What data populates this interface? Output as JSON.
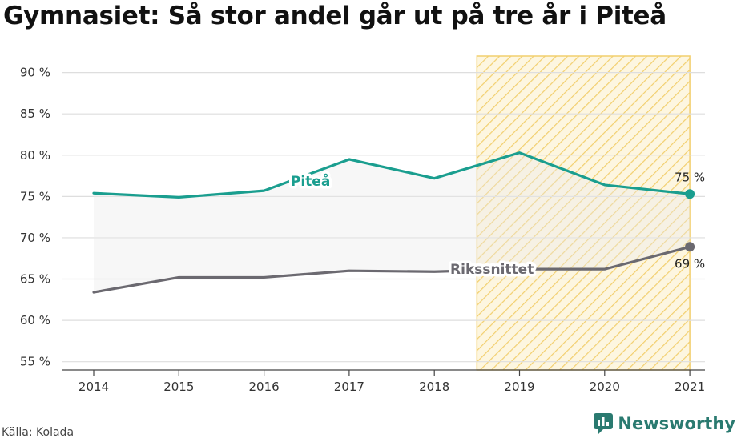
{
  "title": "Gymnasiet: Så stor andel går ut på tre år i Piteå",
  "source": "Källa: Kolada",
  "brand": "Newsworthy",
  "chart_data": {
    "type": "line",
    "title": "Gymnasiet: Så stor andel går ut på tre år i Piteå",
    "x": [
      "2014",
      "2015",
      "2016",
      "2017",
      "2018",
      "2019",
      "2020",
      "2021"
    ],
    "yticks": [
      "55 %",
      "60 %",
      "65 %",
      "70 %",
      "75 %",
      "80 %",
      "85 %",
      "90 %"
    ],
    "ylim": [
      54,
      92
    ],
    "highlight_range": [
      "2018.5",
      "2021"
    ],
    "series": [
      {
        "name": "Piteå",
        "color": "#1a9e8f",
        "values": [
          75.4,
          74.9,
          75.7,
          79.5,
          77.2,
          80.3,
          76.4,
          75.3
        ],
        "end_label": "75 %"
      },
      {
        "name": "Rikssnittet",
        "color": "#6b6970",
        "values": [
          63.4,
          65.2,
          65.2,
          66.0,
          65.9,
          66.2,
          66.2,
          68.9
        ],
        "end_label": "69 %"
      }
    ]
  }
}
